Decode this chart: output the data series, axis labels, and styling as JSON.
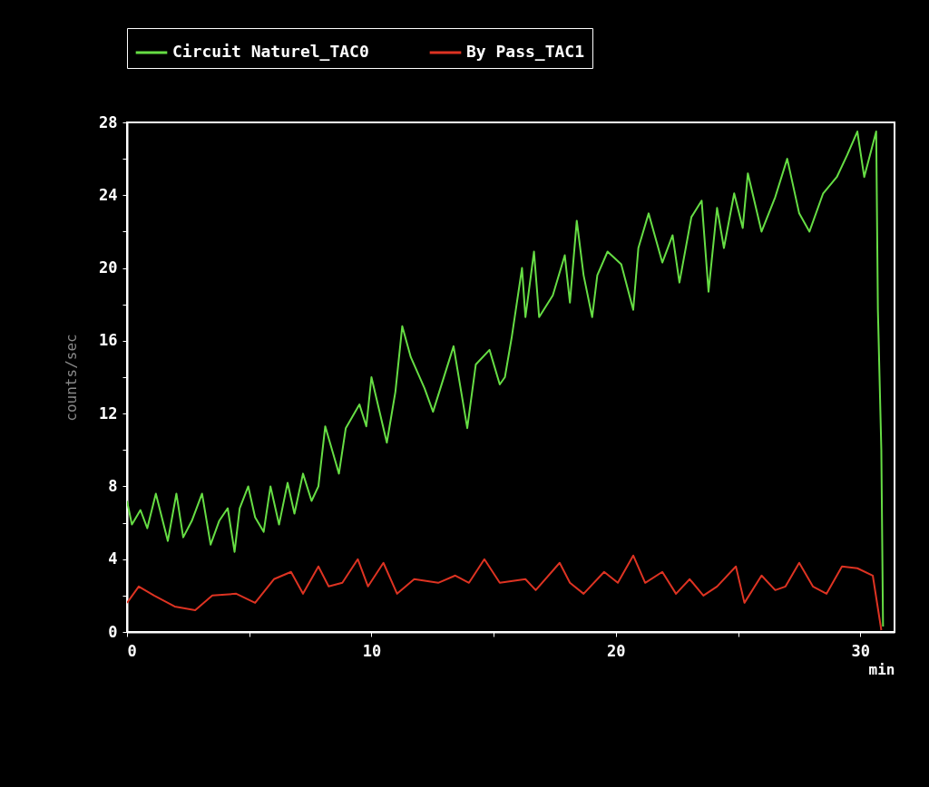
{
  "chart_data": {
    "type": "line",
    "xlabel": "min",
    "ylabel": "counts/sec",
    "legend": "top",
    "grid": false,
    "line_style": "solid",
    "xlim": [
      0,
      31.4
    ],
    "xticks": [
      0,
      {
        "value": 5,
        "label": null
      },
      10,
      {
        "value": 15,
        "label": null
      },
      20,
      {
        "value": 25,
        "label": null
      },
      30
    ],
    "ylim": [
      0,
      28
    ],
    "yticks": [
      0,
      {
        "value": 2,
        "label": null
      },
      4,
      {
        "value": 6,
        "label": null
      },
      8,
      {
        "value": 10,
        "label": null
      },
      12,
      {
        "value": 14,
        "label": null
      },
      16,
      {
        "value": 18,
        "label": null
      },
      20,
      {
        "value": 22,
        "label": null
      },
      24,
      {
        "value": 26,
        "label": null
      },
      28
    ],
    "series": [
      {
        "name": "Circuit Naturel_TAC0",
        "color": "#66dd44",
        "x": [
          0,
          0.2,
          0.55,
          0.83,
          1.18,
          1.67,
          2.02,
          2.3,
          2.65,
          3.07,
          3.42,
          3.77,
          4.12,
          4.4,
          4.61,
          4.96,
          5.24,
          5.59,
          5.87,
          6.22,
          6.57,
          6.85,
          7.2,
          7.55,
          7.83,
          8.11,
          8.67,
          8.95,
          9.51,
          9.79,
          10.0,
          10.63,
          10.98,
          11.26,
          11.61,
          12.17,
          12.52,
          13.36,
          13.92,
          14.27,
          14.83,
          15.25,
          15.46,
          15.74,
          16.16,
          16.3,
          16.65,
          16.86,
          17.42,
          17.91,
          18.12,
          18.4,
          18.68,
          19.03,
          19.24,
          19.66,
          20.22,
          20.71,
          20.92,
          21.34,
          21.9,
          22.32,
          22.6,
          23.09,
          23.51,
          23.79,
          24.14,
          24.42,
          24.84,
          25.19,
          25.4,
          25.96,
          26.52,
          27.01,
          27.5,
          27.92,
          28.48,
          29.04,
          29.46,
          29.88,
          30.16,
          30.65,
          30.72,
          30.86,
          30.93
        ],
        "values": [
          7.2,
          5.9,
          6.7,
          5.7,
          7.6,
          5.0,
          7.6,
          5.2,
          6.1,
          7.6,
          4.8,
          6.1,
          6.8,
          4.4,
          6.8,
          8.0,
          6.3,
          5.5,
          8.0,
          5.9,
          8.2,
          6.5,
          8.7,
          7.2,
          8.0,
          11.3,
          8.7,
          11.2,
          12.5,
          11.3,
          14.0,
          10.4,
          13.2,
          16.8,
          15.1,
          13.4,
          12.1,
          15.7,
          11.2,
          14.7,
          15.5,
          13.6,
          14.0,
          16.2,
          20.0,
          17.3,
          20.9,
          17.3,
          18.5,
          20.7,
          18.1,
          22.6,
          19.6,
          17.3,
          19.6,
          20.9,
          20.2,
          17.7,
          21.1,
          23.0,
          20.3,
          21.8,
          19.2,
          22.8,
          23.7,
          18.7,
          23.3,
          21.1,
          24.1,
          22.2,
          25.2,
          22.0,
          23.9,
          26.0,
          23.0,
          22.0,
          24.1,
          25.0,
          26.2,
          27.5,
          25.0,
          27.5,
          17.7,
          10.0,
          0.3
        ]
      },
      {
        "name": "By Pass_TAC1",
        "color": "#dd3322",
        "x": [
          0,
          0.48,
          1.11,
          1.95,
          2.79,
          3.49,
          4.47,
          5.24,
          6.01,
          6.71,
          7.2,
          7.83,
          8.25,
          8.81,
          9.44,
          9.86,
          10.49,
          11.05,
          11.75,
          12.73,
          13.43,
          13.99,
          14.62,
          15.25,
          16.3,
          16.72,
          17.7,
          18.12,
          18.68,
          19.52,
          20.08,
          20.71,
          21.2,
          21.9,
          22.46,
          23.02,
          23.58,
          24.14,
          24.91,
          25.26,
          25.96,
          26.52,
          26.94,
          27.5,
          28.06,
          28.62,
          29.25,
          29.88,
          30.51,
          30.86
        ],
        "values": [
          1.6,
          2.5,
          2.0,
          1.4,
          1.2,
          2.0,
          2.1,
          1.6,
          2.9,
          3.3,
          2.1,
          3.6,
          2.5,
          2.7,
          4.0,
          2.5,
          3.8,
          2.1,
          2.9,
          2.7,
          3.1,
          2.7,
          4.0,
          2.7,
          2.9,
          2.3,
          3.8,
          2.7,
          2.1,
          3.3,
          2.7,
          4.2,
          2.7,
          3.3,
          2.1,
          2.9,
          2.0,
          2.5,
          3.6,
          1.6,
          3.1,
          2.3,
          2.5,
          3.8,
          2.5,
          2.1,
          3.6,
          3.5,
          3.1,
          0.1
        ]
      }
    ]
  }
}
